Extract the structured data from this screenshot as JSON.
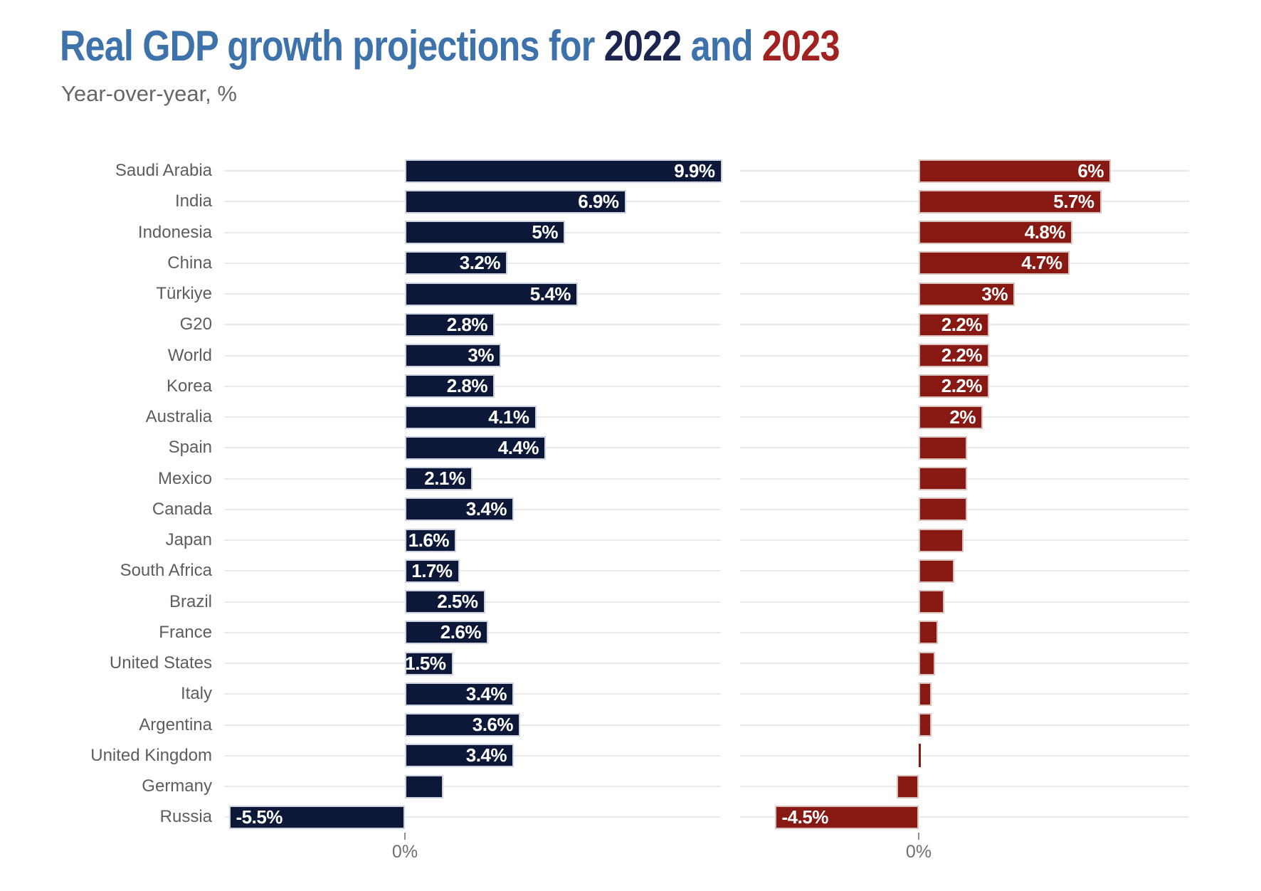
{
  "header": {
    "title_part1": "Real GDP growth projections for ",
    "title_year1": "2022",
    "title_and": " and ",
    "title_year2": "2023",
    "subtitle": "Year-over-year, %"
  },
  "colors": {
    "bar_2022": "#0d1838",
    "bar_2023": "#871912",
    "title_blue": "#3d72ab",
    "title_navy": "#1b2550",
    "title_red": "#a02322",
    "label_gray": "#5d5d5d",
    "gridline": "#e9e9e9"
  },
  "chart_data": {
    "type": "bar",
    "orientation": "horizontal",
    "unit": "%",
    "title": "Real GDP growth projections for 2022 and 2023",
    "subtitle": "Year-over-year, %",
    "grid": "per-row light horizontal lines, one panel per series",
    "legend_position": "none (series distinguished by title colors)",
    "axis": {
      "zero_label": "0%"
    },
    "xlim_2022": [
      -5.7,
      9.9
    ],
    "xlim_2023": [
      -5.6,
      8.4
    ],
    "categories": [
      "Saudi Arabia",
      "India",
      "Indonesia",
      "China",
      "Türkiye",
      "G20",
      "World",
      "Korea",
      "Australia",
      "Spain",
      "Mexico",
      "Canada",
      "Japan",
      "South Africa",
      "Brazil",
      "France",
      "United States",
      "Italy",
      "Argentina",
      "United Kingdom",
      "Germany",
      "Russia"
    ],
    "series": [
      {
        "name": "2022",
        "color": "#0d1838",
        "values": [
          9.9,
          6.9,
          5,
          3.2,
          5.4,
          2.8,
          3,
          2.8,
          4.1,
          4.4,
          2.1,
          3.4,
          1.6,
          1.7,
          2.5,
          2.6,
          1.5,
          3.4,
          3.6,
          3.4,
          1.2,
          -5.5
        ],
        "labels": [
          "9.9%",
          "6.9%",
          "5%",
          "3.2%",
          "5.4%",
          "2.8%",
          "3%",
          "2.8%",
          "4.1%",
          "4.4%",
          "2.1%",
          "3.4%",
          "1.6%",
          "1.7%",
          "2.5%",
          "2.6%",
          "1.5%",
          "3.4%",
          "3.6%",
          "3.4%",
          "",
          "-5.5%"
        ]
      },
      {
        "name": "2023",
        "color": "#871912",
        "values": [
          6,
          5.7,
          4.8,
          4.7,
          3,
          2.2,
          2.2,
          2.2,
          2,
          1.5,
          1.5,
          1.5,
          1.4,
          1.1,
          0.8,
          0.6,
          0.5,
          0.4,
          0.4,
          0,
          -0.7,
          -4.5
        ],
        "labels": [
          "6%",
          "5.7%",
          "4.8%",
          "4.7%",
          "3%",
          "2.2%",
          "2.2%",
          "2.2%",
          "2%",
          "",
          "",
          "",
          "",
          "",
          "",
          "",
          "",
          "",
          "",
          "",
          "",
          "-4.5%"
        ]
      }
    ]
  }
}
